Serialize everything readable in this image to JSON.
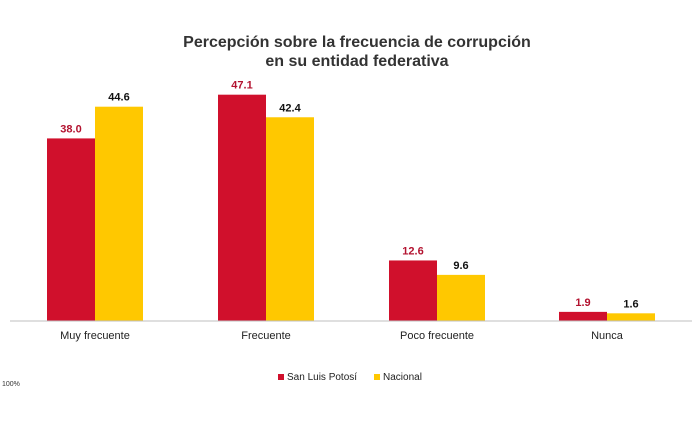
{
  "chart_data": {
    "type": "bar",
    "title_line1": "Percepción sobre la frecuencia de corrupción",
    "title_line2": "en su entidad federativa",
    "categories": [
      "Muy frecuente",
      "Frecuente",
      "Poco frecuente",
      "Nunca"
    ],
    "series": [
      {
        "name": "San Luis Potosí",
        "color": "#d0102c",
        "label_color": "#b3122f",
        "values": [
          38.0,
          47.1,
          12.6,
          1.9
        ],
        "labels": [
          "38.0",
          "47.1",
          "12.6",
          "1.9"
        ]
      },
      {
        "name": "Nacional",
        "color": "#ffc800",
        "label_color": "#111111",
        "values": [
          44.6,
          42.4,
          9.6,
          1.6
        ],
        "labels": [
          "44.6",
          "42.4",
          "9.6",
          "1.6"
        ]
      }
    ],
    "ylim": [
      0,
      50
    ],
    "grid": false,
    "legend_position": "bottom-center",
    "footnote": "100%"
  }
}
